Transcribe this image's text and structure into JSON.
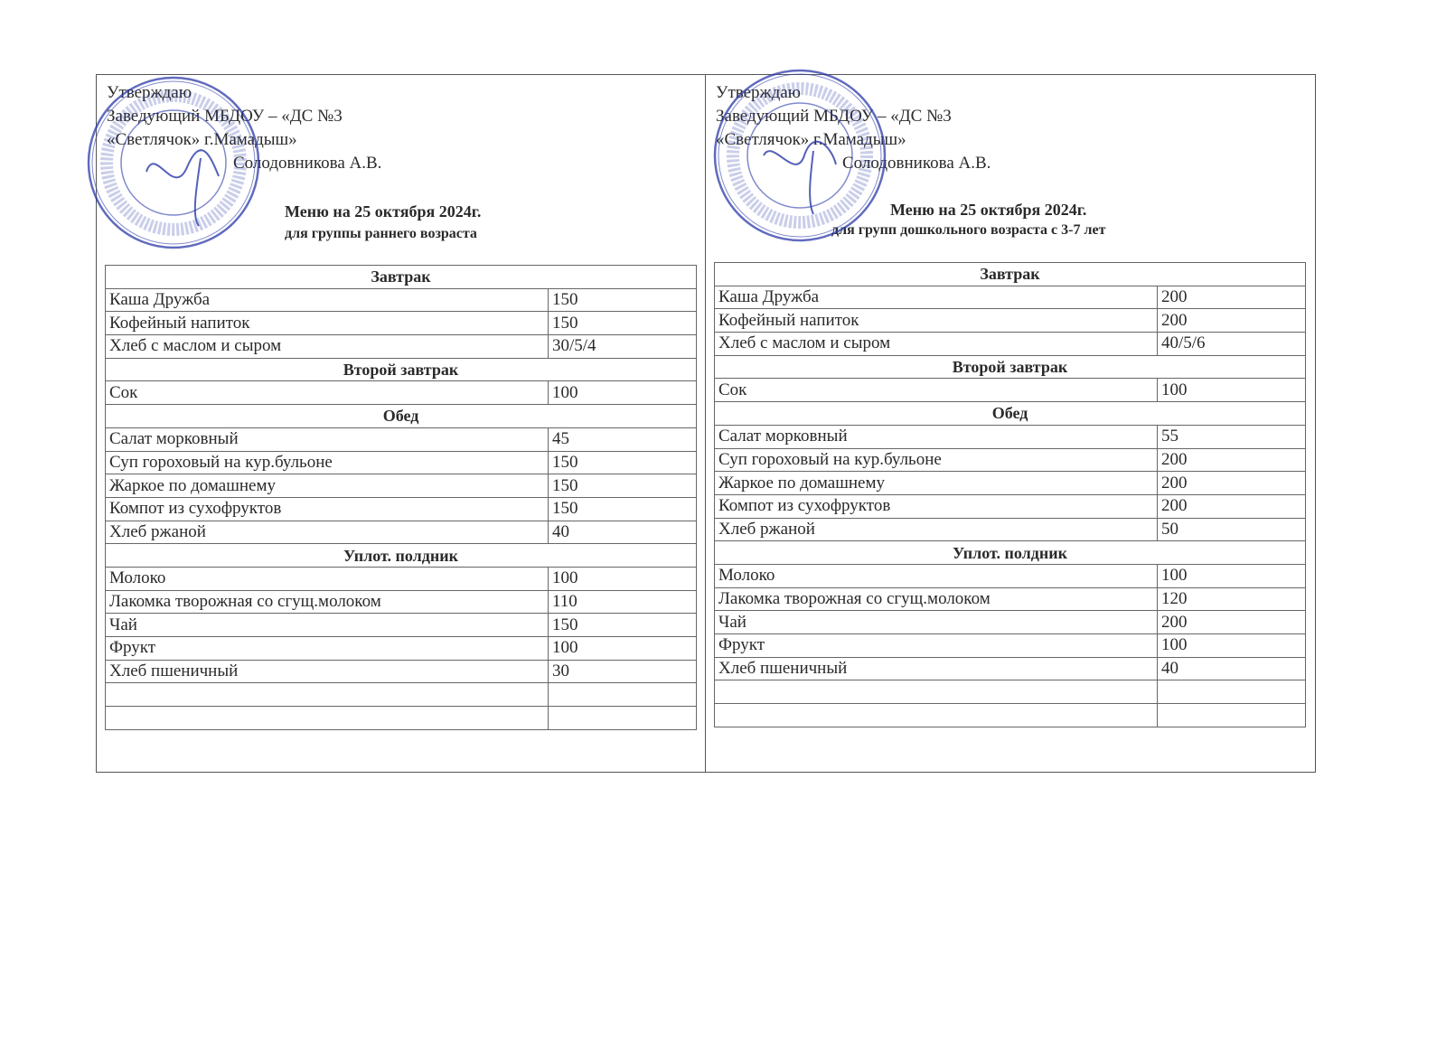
{
  "colors": {
    "stamp": "#2b3aa8",
    "ink": "#2a2a2a",
    "border": "#666666"
  },
  "panels": [
    {
      "approve": [
        "Утверждаю",
        "Заведующий МБДОУ – «ДС №3",
        "«Светлячок» г.Мамадыш»",
        "Солодовникова А.В."
      ],
      "title": "Меню на  25 октября 2024г.",
      "subtitle": "для группы раннего возраста",
      "stamp_text": "МБДОУ \"ДС №3 \"Светлячок\"",
      "rows": [
        {
          "section": "Завтрак"
        },
        {
          "dish": "Каша Дружба",
          "amount": "150"
        },
        {
          "dish": "Кофейный напиток",
          "amount": "150"
        },
        {
          "dish": "Хлеб с маслом и сыром",
          "amount": "30/5/4"
        },
        {
          "section": "Второй завтрак"
        },
        {
          "dish": "Сок",
          "amount": "100"
        },
        {
          "section": "Обед"
        },
        {
          "dish": "Салат морковный",
          "amount": "45"
        },
        {
          "dish": "Суп гороховый на кур.бульоне",
          "amount": "150"
        },
        {
          "dish": "Жаркое по домашнему",
          "amount": "150"
        },
        {
          "dish": "Компот из сухофруктов",
          "amount": "150"
        },
        {
          "dish": "Хлеб ржаной",
          "amount": "40"
        },
        {
          "section": "Уплот. полдник"
        },
        {
          "dish": "Молоко",
          "amount": "100"
        },
        {
          "dish": "Лакомка творожная со сгущ.молоком",
          "amount": "110"
        },
        {
          "dish": "Чай",
          "amount": "150"
        },
        {
          "dish": "Фрукт",
          "amount": "100"
        },
        {
          "dish": "Хлеб пшеничный",
          "amount": "30"
        },
        {
          "dish": "",
          "amount": ""
        },
        {
          "dish": "",
          "amount": ""
        }
      ]
    },
    {
      "approve": [
        "Утверждаю",
        "Заведующий МБДОУ – «ДС №3",
        "«Светлячок» г.Мамадыш»",
        "Солодовникова А.В."
      ],
      "title": "Меню на  25 октября 2024г.",
      "subtitle": "для групп дошкольного возраста с 3-7 лет",
      "stamp_text": "МБДОУ \"ДС №3 \"Светлячок\"",
      "rows": [
        {
          "section": "Завтрак"
        },
        {
          "dish": "Каша Дружба",
          "amount": "200"
        },
        {
          "dish": "Кофейный напиток",
          "amount": "200"
        },
        {
          "dish": "Хлеб с маслом и сыром",
          "amount": "40/5/6"
        },
        {
          "section": "Второй завтрак"
        },
        {
          "dish": "Сок",
          "amount": "100"
        },
        {
          "section": "Обед"
        },
        {
          "dish": "Салат морковный",
          "amount": "55"
        },
        {
          "dish": "Суп гороховый на кур.бульоне",
          "amount": "200"
        },
        {
          "dish": "Жаркое по домашнему",
          "amount": "200"
        },
        {
          "dish": "Компот из сухофруктов",
          "amount": "200"
        },
        {
          "dish": "Хлеб ржаной",
          "amount": "50"
        },
        {
          "section": "Уплот. полдник"
        },
        {
          "dish": "Молоко",
          "amount": "100"
        },
        {
          "dish": "Лакомка творожная со сгущ.молоком",
          "amount": "120"
        },
        {
          "dish": "Чай",
          "amount": "200"
        },
        {
          "dish": "Фрукт",
          "amount": "100"
        },
        {
          "dish": "Хлеб пшеничный",
          "amount": "40"
        },
        {
          "dish": "",
          "amount": ""
        },
        {
          "dish": "",
          "amount": ""
        }
      ]
    }
  ]
}
